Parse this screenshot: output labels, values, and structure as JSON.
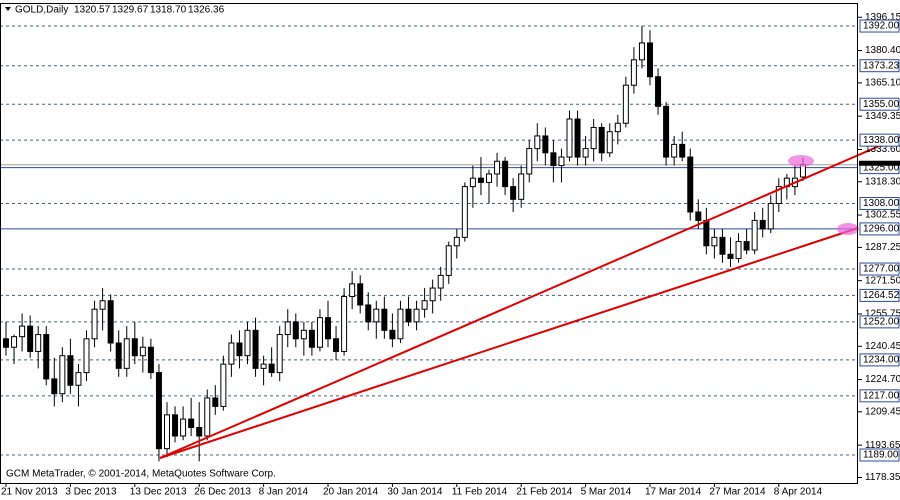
{
  "chart_data": {
    "type": "candlestick",
    "title": "GOLD,Daily",
    "ohlc_text": [
      "1320.57",
      "1329.67",
      "1318.70",
      "1326.36"
    ],
    "watermark": "GCM MetaTrader, © 2001-2014, MetaQuotes Software Corp.",
    "categories": [
      "21 Nov 2013",
      null,
      null,
      null,
      null,
      null,
      null,
      null,
      "3 Dec 2013",
      null,
      null,
      null,
      null,
      null,
      null,
      null,
      "13 Dec 2013",
      null,
      null,
      null,
      null,
      null,
      null,
      null,
      "26 Dec 2013",
      null,
      null,
      null,
      null,
      null,
      null,
      null,
      "8 Jan 2014",
      null,
      null,
      null,
      null,
      null,
      null,
      null,
      "20 Jan 2014",
      null,
      null,
      null,
      null,
      null,
      null,
      null,
      "30 Jan 2014",
      null,
      null,
      null,
      null,
      null,
      null,
      null,
      "11 Feb 2014",
      null,
      null,
      null,
      null,
      null,
      null,
      null,
      "21 Feb 2014",
      null,
      null,
      null,
      null,
      null,
      null,
      null,
      "5 Mar 2014",
      null,
      null,
      null,
      null,
      null,
      null,
      null,
      "17 Mar 2014",
      null,
      null,
      null,
      null,
      null,
      null,
      null,
      "27 Mar 2014",
      null,
      null,
      null,
      null,
      null,
      null,
      null,
      "8 Apr 2014",
      null,
      null,
      null
    ],
    "open": [
      1244,
      1240,
      1245,
      1250,
      1238,
      1246,
      1225,
      1218,
      1236,
      1222,
      1228,
      1244,
      1258,
      1262,
      1242,
      1230,
      1244,
      1236,
      1240,
      1228,
      1192,
      1208,
      1198,
      1206,
      1202,
      1198,
      1216,
      1212,
      1232,
      1242,
      1236,
      1248,
      1230,
      1232,
      1228,
      1246,
      1252,
      1244,
      1248,
      1240,
      1254,
      1244,
      1238,
      1264,
      1270,
      1260,
      1252,
      1258,
      1248,
      1244,
      1258,
      1252,
      1258,
      1262,
      1268,
      1274,
      1288,
      1292,
      1316,
      1320,
      1318,
      1322,
      1328,
      1316,
      1310,
      1322,
      1334,
      1340,
      1332,
      1326,
      1330,
      1348,
      1330,
      1334,
      1344,
      1332,
      1342,
      1346,
      1364,
      1376,
      1384,
      1368,
      1354,
      1330,
      1336,
      1330,
      1304,
      1300,
      1288,
      1292,
      1284,
      1282,
      1290,
      1286,
      1300,
      1296,
      1308,
      1316,
      1316,
      1320.57
    ],
    "high": [
      1252,
      1246,
      1256,
      1255,
      1250,
      1250,
      1235,
      1240,
      1244,
      1232,
      1248,
      1262,
      1268,
      1265,
      1248,
      1250,
      1252,
      1245,
      1244,
      1232,
      1214,
      1212,
      1212,
      1216,
      1214,
      1220,
      1222,
      1236,
      1246,
      1248,
      1252,
      1254,
      1236,
      1240,
      1250,
      1258,
      1256,
      1252,
      1252,
      1258,
      1262,
      1250,
      1268,
      1276,
      1274,
      1266,
      1262,
      1264,
      1256,
      1262,
      1264,
      1262,
      1268,
      1272,
      1278,
      1290,
      1296,
      1318,
      1326,
      1330,
      1324,
      1332,
      1330,
      1320,
      1326,
      1338,
      1346,
      1344,
      1338,
      1334,
      1352,
      1352,
      1340,
      1348,
      1346,
      1346,
      1350,
      1368,
      1382,
      1392,
      1390,
      1372,
      1356,
      1340,
      1342,
      1334,
      1310,
      1306,
      1296,
      1296,
      1292,
      1294,
      1296,
      1304,
      1306,
      1312,
      1320,
      1322,
      1326,
      1329.67
    ],
    "low": [
      1236,
      1232,
      1238,
      1235,
      1230,
      1222,
      1212,
      1214,
      1218,
      1212,
      1224,
      1240,
      1248,
      1238,
      1226,
      1226,
      1232,
      1228,
      1225,
      1186,
      1188,
      1195,
      1196,
      1198,
      1186,
      1196,
      1208,
      1210,
      1226,
      1230,
      1232,
      1226,
      1222,
      1226,
      1224,
      1240,
      1240,
      1236,
      1236,
      1238,
      1240,
      1234,
      1236,
      1258,
      1256,
      1248,
      1244,
      1244,
      1240,
      1242,
      1250,
      1248,
      1254,
      1256,
      1262,
      1270,
      1282,
      1290,
      1306,
      1312,
      1308,
      1316,
      1312,
      1304,
      1306,
      1318,
      1328,
      1326,
      1318,
      1318,
      1328,
      1326,
      1326,
      1328,
      1328,
      1330,
      1336,
      1344,
      1360,
      1372,
      1364,
      1350,
      1326,
      1326,
      1328,
      1300,
      1296,
      1284,
      1282,
      1280,
      1278,
      1280,
      1284,
      1284,
      1292,
      1294,
      1304,
      1310,
      1312,
      1318.7
    ],
    "close": [
      1240,
      1245,
      1250,
      1238,
      1246,
      1225,
      1218,
      1236,
      1222,
      1228,
      1244,
      1258,
      1262,
      1242,
      1230,
      1244,
      1236,
      1240,
      1228,
      1192,
      1208,
      1198,
      1206,
      1202,
      1198,
      1216,
      1212,
      1232,
      1242,
      1236,
      1248,
      1230,
      1232,
      1228,
      1246,
      1252,
      1244,
      1248,
      1240,
      1254,
      1244,
      1238,
      1264,
      1270,
      1260,
      1252,
      1258,
      1248,
      1244,
      1258,
      1252,
      1258,
      1262,
      1268,
      1274,
      1288,
      1292,
      1316,
      1320,
      1318,
      1322,
      1328,
      1316,
      1310,
      1322,
      1334,
      1340,
      1332,
      1326,
      1330,
      1348,
      1330,
      1334,
      1344,
      1332,
      1342,
      1346,
      1364,
      1376,
      1384,
      1368,
      1354,
      1330,
      1336,
      1330,
      1304,
      1300,
      1288,
      1292,
      1284,
      1282,
      1290,
      1286,
      1300,
      1296,
      1308,
      1316,
      1320,
      1320,
      1326.36
    ],
    "bull_color": "#ffffff",
    "bear_color": "#000000",
    "ylim": [
      1175.75,
      1402.9
    ],
    "yticks": [
      {
        "value": 1396.15,
        "label": "1396.15"
      },
      {
        "value": 1380.4,
        "label": "1380.40"
      },
      {
        "value": 1365.1,
        "label": "1365.10"
      },
      {
        "value": 1349.35,
        "label": "1349.35"
      },
      {
        "value": 1333.6,
        "label": "1333.60"
      },
      {
        "value": 1318.3,
        "label": "1318.30"
      },
      {
        "value": 1302.55,
        "label": "1302.55"
      },
      {
        "value": 1287.25,
        "label": "1287.25"
      },
      {
        "value": 1271.5,
        "label": "1271.50"
      },
      {
        "value": 1255.75,
        "label": "1255.75"
      },
      {
        "value": 1240.45,
        "label": "1240.45"
      },
      {
        "value": 1224.7,
        "label": "1224.70"
      },
      {
        "value": 1209.45,
        "label": "1209.45"
      },
      {
        "value": 1193.65,
        "label": "1193.65"
      },
      {
        "value": 1178.35,
        "label": "1178.35"
      }
    ],
    "levels": [
      {
        "value": 1392,
        "label": "1392.00"
      },
      {
        "value": 1373.23,
        "label": "1373.23"
      },
      {
        "value": 1355,
        "label": "1355.00"
      },
      {
        "value": 1338,
        "label": "1338.00"
      },
      {
        "value": 1325,
        "label": "1325.00",
        "line": "solid"
      },
      {
        "value": 1308,
        "label": "1308.00"
      },
      {
        "value": 1296,
        "label": "1296.00",
        "line": "solid"
      },
      {
        "value": 1277,
        "label": "1277.00"
      },
      {
        "value": 1264.52,
        "label": "1264.52"
      },
      {
        "value": 1252,
        "label": "1252.00"
      },
      {
        "value": 1234,
        "label": "1234.00"
      },
      {
        "value": 1217,
        "label": "1217.00"
      },
      {
        "value": 1189,
        "label": "1189.00"
      }
    ]
  }
}
